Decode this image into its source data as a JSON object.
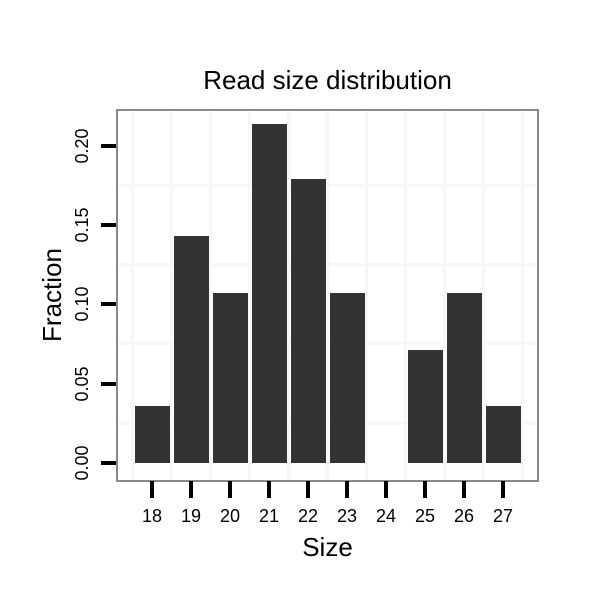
{
  "chart_data": {
    "type": "bar",
    "title": "Read size distribution",
    "xlabel": "Size",
    "ylabel": "Fraction",
    "categories": [
      "18",
      "19",
      "20",
      "21",
      "22",
      "23",
      "24",
      "25",
      "26",
      "27"
    ],
    "values": [
      0.036,
      0.143,
      0.107,
      0.214,
      0.179,
      0.107,
      0,
      0.071,
      0.107,
      0.036
    ],
    "yticks": {
      "labels": [
        "0.00",
        "0.05",
        "0.10",
        "0.15",
        "0.20"
      ],
      "values": [
        0,
        0.05,
        0.1,
        0.15,
        0.2
      ]
    },
    "minor_gridlines_y": [
      0.025,
      0.075,
      0.125,
      0.175
    ],
    "ylim": [
      -0.011,
      0.2223
    ],
    "grid": "minor-only",
    "legend_position": "none",
    "colors": {
      "bar": "#333333",
      "panel_border": "#898989",
      "gridline": "#f7f7f7",
      "tick": "#000000",
      "text": "#000000",
      "background": "#ffffff"
    }
  }
}
